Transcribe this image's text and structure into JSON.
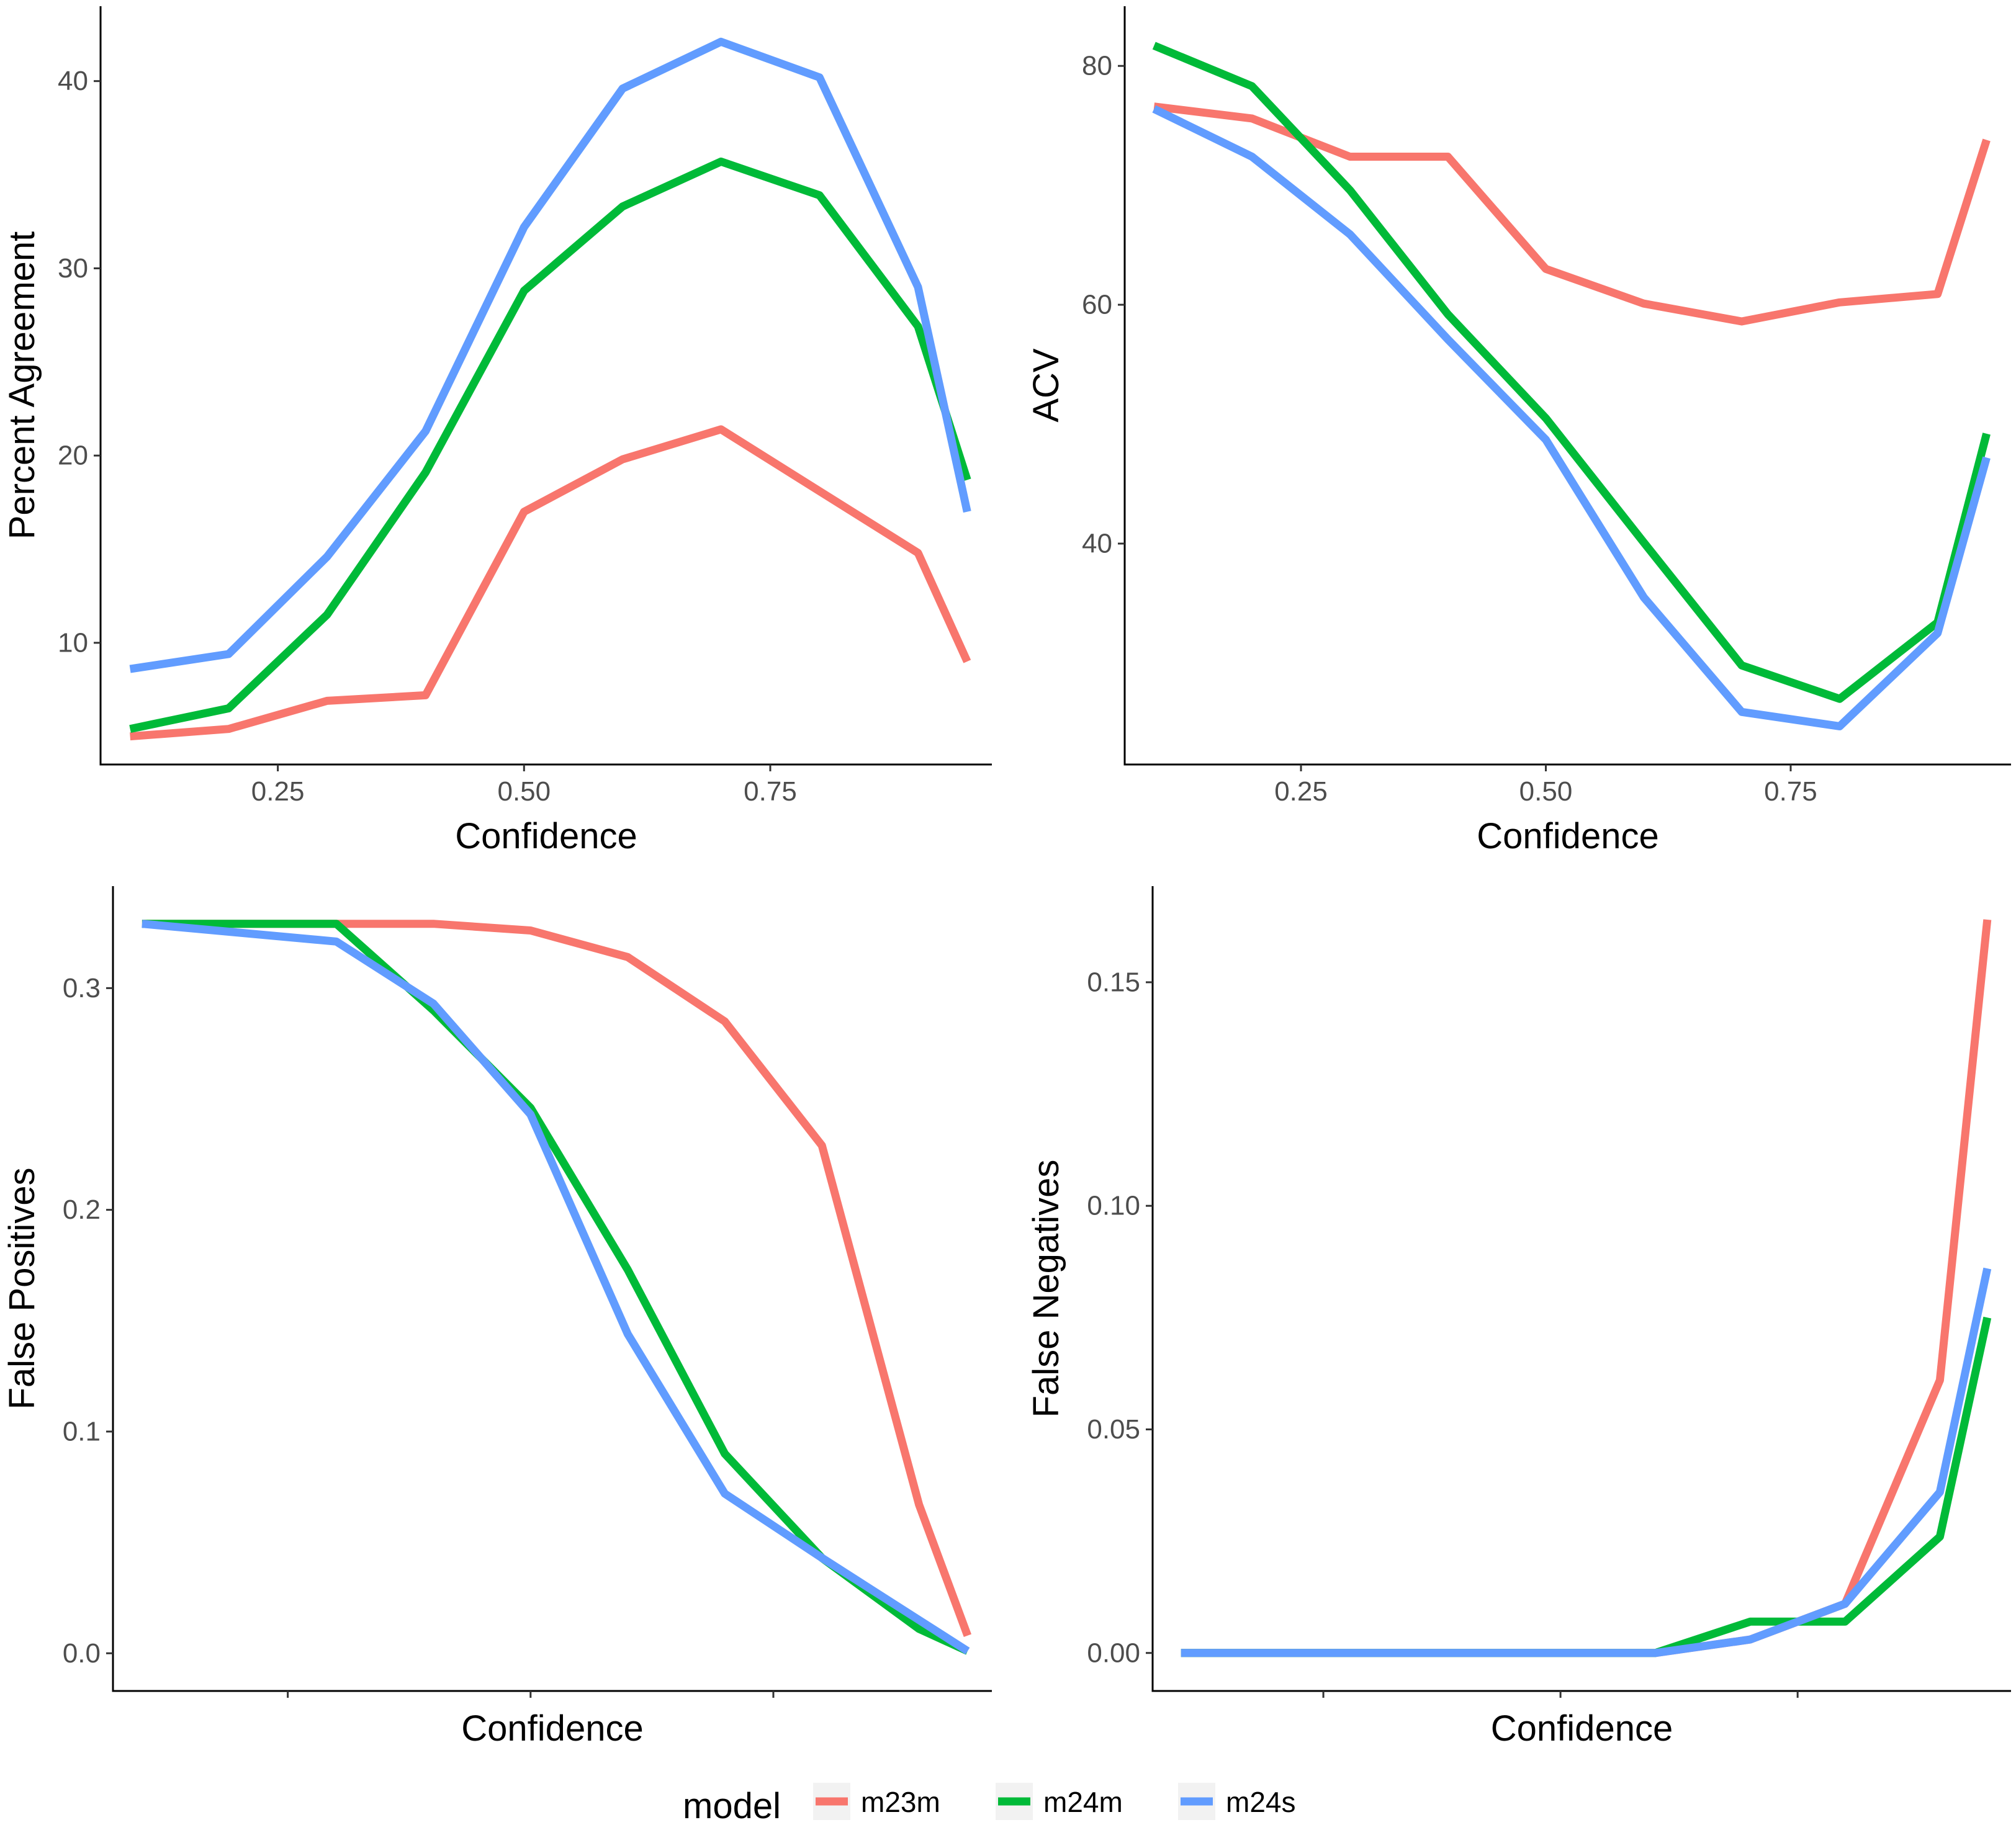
{
  "chart_data": [
    {
      "type": "line",
      "panel": "top-left",
      "title": "",
      "xlabel": "Confidence",
      "ylabel": "Percent Agreement",
      "xlim": [
        0.07,
        0.975
      ],
      "ylim": [
        3.5,
        44
      ],
      "xticks": [
        0.25,
        0.5,
        0.75
      ],
      "xtick_labels": [
        "0.25",
        "0.50",
        "0.75"
      ],
      "yticks": [
        10,
        20,
        30,
        40
      ],
      "ytick_labels": [
        "10",
        "20",
        "30",
        "40"
      ],
      "grid": false,
      "x": [
        0.1,
        0.2,
        0.3,
        0.4,
        0.5,
        0.6,
        0.7,
        0.8,
        0.9,
        0.95
      ],
      "series": [
        {
          "name": "m23m",
          "values": [
            5.0,
            5.4,
            6.9,
            7.2,
            17.0,
            19.8,
            21.4,
            18.1,
            14.8,
            9.0
          ]
        },
        {
          "name": "m24m",
          "values": [
            5.4,
            6.5,
            11.5,
            19.1,
            28.8,
            33.3,
            35.7,
            33.9,
            26.9,
            18.7
          ]
        },
        {
          "name": "m24s",
          "values": [
            8.6,
            9.4,
            14.6,
            21.3,
            32.2,
            39.6,
            42.1,
            40.2,
            29.0,
            17.0
          ]
        }
      ]
    },
    {
      "type": "line",
      "panel": "top-right",
      "title": "",
      "xlabel": "Confidence",
      "ylabel": "ACV",
      "xlim": [
        0.07,
        0.975
      ],
      "ylim": [
        21.5,
        85
      ],
      "xticks": [
        0.25,
        0.5,
        0.75
      ],
      "xtick_labels": [
        "0.25",
        "0.50",
        "0.75"
      ],
      "yticks": [
        40,
        60,
        80
      ],
      "ytick_labels": [
        "40",
        "60",
        "80"
      ],
      "grid": false,
      "x": [
        0.1,
        0.2,
        0.3,
        0.4,
        0.5,
        0.6,
        0.7,
        0.8,
        0.9,
        0.95
      ],
      "series": [
        {
          "name": "m23m",
          "values": [
            76.6,
            75.6,
            72.4,
            72.4,
            63.0,
            60.1,
            58.6,
            60.2,
            60.9,
            73.8
          ]
        },
        {
          "name": "m24m",
          "values": [
            81.7,
            78.3,
            69.6,
            59.2,
            50.5,
            40.1,
            29.8,
            27.0,
            33.4,
            49.2
          ]
        },
        {
          "name": "m24s",
          "values": [
            76.4,
            72.4,
            65.9,
            57.1,
            48.7,
            35.5,
            25.9,
            24.7,
            32.5,
            47.2
          ]
        }
      ]
    },
    {
      "type": "line",
      "panel": "bottom-left",
      "title": "",
      "xlabel": "Confidence",
      "ylabel": "False Positives",
      "xlim": [
        0.07,
        0.975
      ],
      "ylim": [
        -0.017,
        0.346
      ],
      "xticks": [
        0.25,
        0.5,
        0.75
      ],
      "xtick_labels": [
        "",
        "",
        ""
      ],
      "yticks": [
        0.0,
        0.1,
        0.2,
        0.3
      ],
      "ytick_labels": [
        "0.0",
        "0.1",
        "0.2",
        "0.3"
      ],
      "grid": false,
      "x": [
        0.1,
        0.2,
        0.3,
        0.4,
        0.5,
        0.6,
        0.7,
        0.8,
        0.9,
        0.95
      ],
      "series": [
        {
          "name": "m23m",
          "values": [
            0.329,
            0.329,
            0.329,
            0.329,
            0.326,
            0.314,
            0.285,
            0.229,
            0.067,
            0.008
          ]
        },
        {
          "name": "m24m",
          "values": [
            0.329,
            0.329,
            0.329,
            0.29,
            0.246,
            0.173,
            0.09,
            0.043,
            0.011,
            0.001
          ]
        },
        {
          "name": "m24s",
          "values": [
            0.329,
            0.325,
            0.321,
            0.293,
            0.243,
            0.144,
            0.072,
            0.043,
            0.015,
            0.001
          ]
        }
      ]
    },
    {
      "type": "line",
      "panel": "bottom-right",
      "title": "",
      "xlabel": "Confidence",
      "ylabel": "False Negatives",
      "xlim": [
        0.07,
        0.975
      ],
      "ylim": [
        -0.0085,
        0.1715
      ],
      "xticks": [
        0.25,
        0.5,
        0.75
      ],
      "xtick_labels": [
        "",
        "",
        ""
      ],
      "yticks": [
        0.0,
        0.05,
        0.1,
        0.15
      ],
      "ytick_labels": [
        "0.00",
        "0.05",
        "0.10",
        "0.15"
      ],
      "grid": false,
      "x": [
        0.1,
        0.2,
        0.3,
        0.4,
        0.5,
        0.6,
        0.7,
        0.8,
        0.9,
        0.95
      ],
      "series": [
        {
          "name": "m23m",
          "values": [
            0.0,
            0.0,
            0.0,
            0.0,
            0.0,
            0.0,
            0.003,
            0.011,
            0.061,
            0.164
          ]
        },
        {
          "name": "m24m",
          "values": [
            0.0,
            0.0,
            0.0,
            0.0,
            0.0,
            0.0,
            0.007,
            0.007,
            0.026,
            0.075
          ]
        },
        {
          "name": "m24s",
          "values": [
            0.0,
            0.0,
            0.0,
            0.0,
            0.0,
            0.0,
            0.003,
            0.011,
            0.036,
            0.086
          ]
        }
      ]
    }
  ],
  "legend": {
    "title": "model",
    "position": "bottom",
    "entries": [
      {
        "name": "m23m",
        "color": "#F8766D"
      },
      {
        "name": "m24m",
        "color": "#00BA38"
      },
      {
        "name": "m24s",
        "color": "#619CFF"
      }
    ]
  },
  "colors": {
    "m23m": "#F8766D",
    "m24m": "#00BA38",
    "m24s": "#619CFF"
  }
}
